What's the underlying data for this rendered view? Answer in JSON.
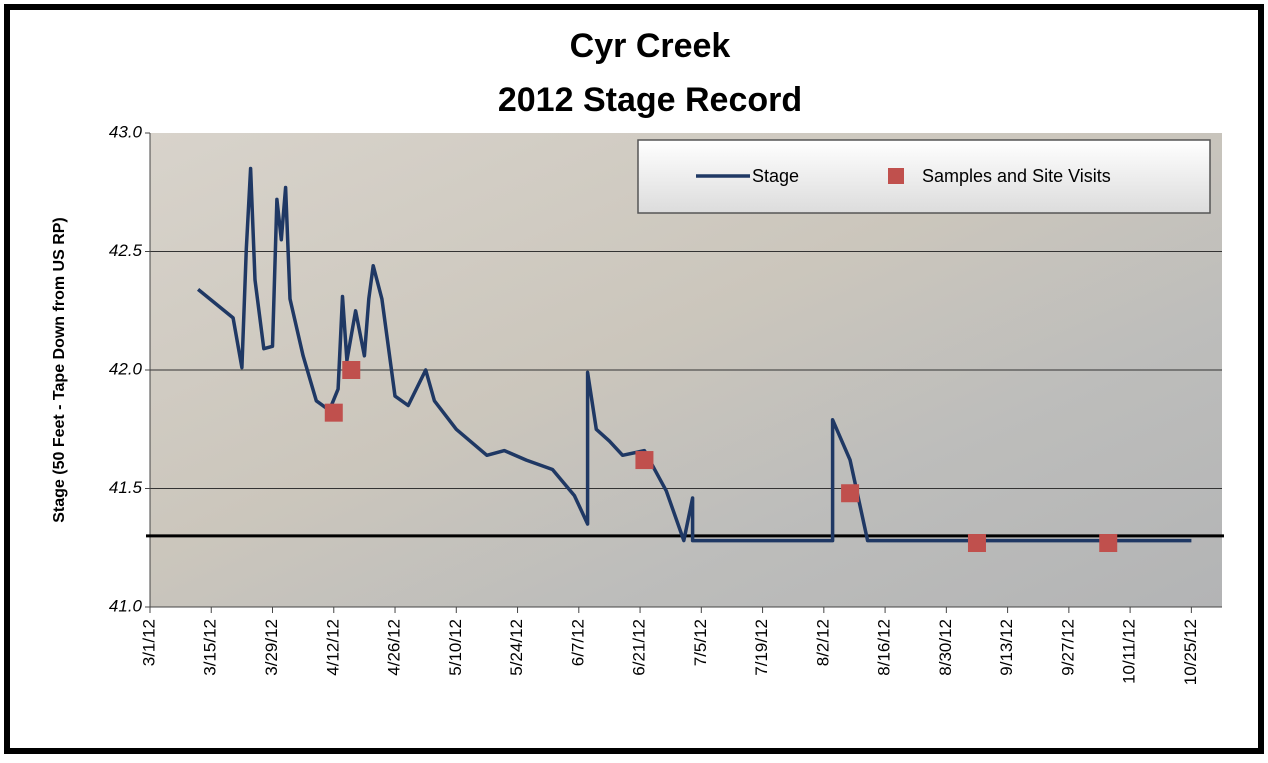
{
  "chart_data": {
    "type": "line",
    "title": [
      "Cyr Creek",
      "2012 Stage Record"
    ],
    "y_label": "Stage (50 Feet - Tape Down from US RP)",
    "xlim": [
      "2012-03-01",
      "2012-11-01"
    ],
    "xticks": [
      {
        "value": "2012-03-01",
        "label": "3/1/12"
      },
      {
        "value": "2012-03-15",
        "label": "3/15/12"
      },
      {
        "value": "2012-03-29",
        "label": "3/29/12"
      },
      {
        "value": "2012-04-12",
        "label": "4/12/12"
      },
      {
        "value": "2012-04-26",
        "label": "4/26/12"
      },
      {
        "value": "2012-05-10",
        "label": "5/10/12"
      },
      {
        "value": "2012-05-24",
        "label": "5/24/12"
      },
      {
        "value": "2012-06-07",
        "label": "6/7/12"
      },
      {
        "value": "2012-06-21",
        "label": "6/21/12"
      },
      {
        "value": "2012-07-05",
        "label": "7/5/12"
      },
      {
        "value": "2012-07-19",
        "label": "7/19/12"
      },
      {
        "value": "2012-08-02",
        "label": "8/2/12"
      },
      {
        "value": "2012-08-16",
        "label": "8/16/12"
      },
      {
        "value": "2012-08-30",
        "label": "8/30/12"
      },
      {
        "value": "2012-09-13",
        "label": "9/13/12"
      },
      {
        "value": "2012-09-27",
        "label": "9/27/12"
      },
      {
        "value": "2012-10-11",
        "label": "10/11/12"
      },
      {
        "value": "2012-10-25",
        "label": "10/25/12"
      }
    ],
    "ylim": [
      41.0,
      43.0
    ],
    "yticks": [
      {
        "value": 41,
        "label": "41.0"
      },
      {
        "value": 41.5,
        "label": "41.5"
      },
      {
        "value": 42,
        "label": "42.0"
      },
      {
        "value": 42.5,
        "label": "42.5"
      },
      {
        "value": 43,
        "label": "43.0"
      }
    ],
    "grid": true,
    "reference_line": {
      "value": 41.3,
      "color": "#000000"
    },
    "legend": "top-right",
    "series": [
      {
        "name": "Stage",
        "type": "line",
        "color": "#1f3864",
        "x": [
          "2012-03-12",
          "2012-03-20",
          "2012-03-22",
          "2012-03-23",
          "2012-03-24",
          "2012-03-25",
          "2012-03-27",
          "2012-03-29",
          "2012-03-30",
          "2012-03-31",
          "2012-04-01",
          "2012-04-02",
          "2012-04-05",
          "2012-04-08",
          "2012-04-11",
          "2012-04-13",
          "2012-04-14",
          "2012-04-15",
          "2012-04-17",
          "2012-04-19",
          "2012-04-20",
          "2012-04-21",
          "2012-04-23",
          "2012-04-26",
          "2012-04-29",
          "2012-05-03",
          "2012-05-05",
          "2012-05-10",
          "2012-05-17",
          "2012-05-21",
          "2012-05-26",
          "2012-06-01",
          "2012-06-06",
          "2012-06-09",
          "2012-06-09",
          "2012-06-11",
          "2012-06-14",
          "2012-06-17",
          "2012-06-22",
          "2012-06-27",
          "2012-07-01",
          "2012-07-03",
          "2012-07-03",
          "2012-08-04",
          "2012-08-04",
          "2012-08-08",
          "2012-08-12",
          "2012-10-25"
        ],
        "values": [
          42.34,
          42.22,
          42.01,
          42.51,
          42.85,
          42.38,
          42.09,
          42.1,
          42.72,
          42.55,
          42.77,
          42.3,
          42.06,
          41.87,
          41.83,
          41.92,
          42.31,
          42.04,
          42.25,
          42.06,
          42.3,
          42.44,
          42.3,
          41.89,
          41.85,
          42.0,
          41.87,
          41.75,
          41.64,
          41.66,
          41.62,
          41.58,
          41.47,
          41.35,
          41.99,
          41.75,
          41.7,
          41.64,
          41.66,
          41.49,
          41.28,
          41.46,
          41.28,
          41.28,
          41.79,
          41.62,
          41.28,
          41.28
        ]
      },
      {
        "name": "Samples and Site Visits",
        "type": "scatter",
        "color": "#c0504d",
        "x": [
          "2012-04-12",
          "2012-04-16",
          "2012-06-22",
          "2012-08-08",
          "2012-09-06",
          "2012-10-06"
        ],
        "values": [
          41.82,
          42.0,
          41.62,
          41.48,
          41.27,
          41.27
        ]
      }
    ]
  }
}
